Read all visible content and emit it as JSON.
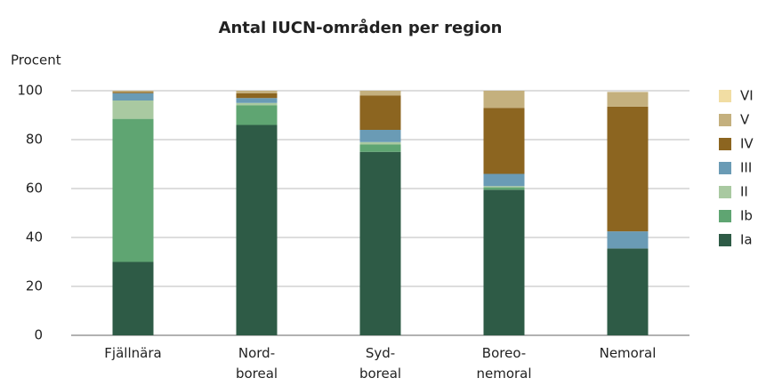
{
  "chart_data": {
    "type": "stacked_bar",
    "title": "Antal IUCN-områden per region",
    "y_label": "Procent",
    "categories": [
      "Fjällnära",
      "Nord-\nboreal",
      "Syd-\nboreal",
      "Boreo-\nnemoral",
      "Nemoral"
    ],
    "series": [
      {
        "name": "Ia",
        "color": "#2e5b46",
        "values": [
          30,
          86,
          75,
          59.5,
          35.5
        ]
      },
      {
        "name": "Ib",
        "color": "#5fa572",
        "values": [
          58.5,
          8,
          3,
          1,
          0
        ]
      },
      {
        "name": "II",
        "color": "#a9c9a1",
        "values": [
          7.5,
          1,
          1,
          0.5,
          0
        ]
      },
      {
        "name": "III",
        "color": "#6a9bb5",
        "values": [
          3,
          2,
          5,
          5,
          7
        ]
      },
      {
        "name": "IV",
        "color": "#8c6520",
        "values": [
          0.5,
          2,
          14,
          27,
          51
        ]
      },
      {
        "name": "V",
        "color": "#c4b07e",
        "values": [
          0.5,
          1,
          2,
          7,
          6
        ]
      },
      {
        "name": "VI",
        "color": "#f1dda3",
        "values": [
          0,
          0,
          0,
          0,
          0
        ]
      }
    ],
    "ylim": [
      0,
      100
    ],
    "yticks": [
      0,
      20,
      40,
      60,
      80,
      100
    ],
    "grid": true,
    "legend": "right"
  }
}
